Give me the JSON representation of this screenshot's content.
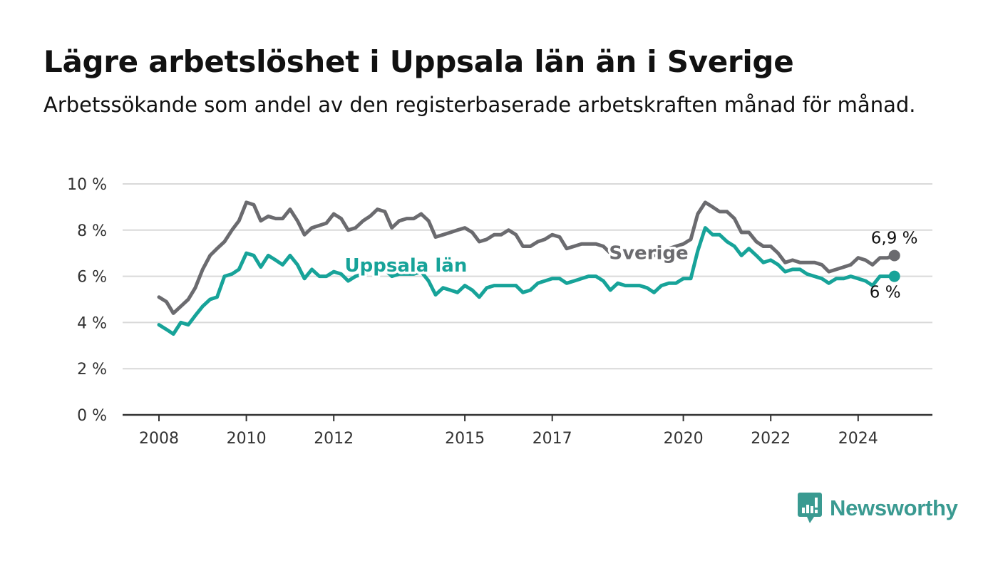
{
  "header": {
    "title": "Lägre arbetslöshet i Uppsala län än i Sverige",
    "subtitle": "Arbetssökande som andel av den registerbaserade arbetskraften månad för månad."
  },
  "brand": {
    "name": "Newsworthy",
    "color": "#3a9a91",
    "icon": "newsworthy-chart-bubble-icon"
  },
  "chart_data": {
    "type": "line",
    "title": "Lägre arbetslöshet i Uppsala län än i Sverige",
    "subtitle": "Arbetssökande som andel av den registerbaserade arbetskraften månad för månad.",
    "xlabel": "",
    "ylabel": "",
    "x_ticks": [
      "2008",
      "2010",
      "2012",
      "2015",
      "2017",
      "2020",
      "2022",
      "2024"
    ],
    "x_range": [
      2007.5,
      2026.0
    ],
    "y_ticks": [
      "0 %",
      "2 %",
      "4 %",
      "6 %",
      "8 %",
      "10 %"
    ],
    "ylim": [
      0,
      10
    ],
    "grid": true,
    "legend": "inline labels on lines",
    "series": [
      {
        "name": "Sverige",
        "color": "#6b6b6f",
        "end_label": "6,9 %",
        "points": [
          [
            2008.0,
            5.1
          ],
          [
            2008.17,
            4.9
          ],
          [
            2008.33,
            4.4
          ],
          [
            2008.5,
            4.7
          ],
          [
            2008.67,
            5.0
          ],
          [
            2008.83,
            5.5
          ],
          [
            2009.0,
            6.3
          ],
          [
            2009.17,
            6.9
          ],
          [
            2009.33,
            7.2
          ],
          [
            2009.5,
            7.5
          ],
          [
            2009.67,
            8.0
          ],
          [
            2009.83,
            8.4
          ],
          [
            2010.0,
            9.2
          ],
          [
            2010.17,
            9.1
          ],
          [
            2010.33,
            8.4
          ],
          [
            2010.5,
            8.6
          ],
          [
            2010.67,
            8.5
          ],
          [
            2010.83,
            8.5
          ],
          [
            2011.0,
            8.9
          ],
          [
            2011.17,
            8.4
          ],
          [
            2011.33,
            7.8
          ],
          [
            2011.5,
            8.1
          ],
          [
            2011.67,
            8.2
          ],
          [
            2011.83,
            8.3
          ],
          [
            2012.0,
            8.7
          ],
          [
            2012.17,
            8.5
          ],
          [
            2012.33,
            8.0
          ],
          [
            2012.5,
            8.1
          ],
          [
            2012.67,
            8.4
          ],
          [
            2012.83,
            8.6
          ],
          [
            2013.0,
            8.9
          ],
          [
            2013.17,
            8.8
          ],
          [
            2013.33,
            8.1
          ],
          [
            2013.5,
            8.4
          ],
          [
            2013.67,
            8.5
          ],
          [
            2013.83,
            8.5
          ],
          [
            2014.0,
            8.7
          ],
          [
            2014.17,
            8.4
          ],
          [
            2014.33,
            7.7
          ],
          [
            2014.5,
            7.8
          ],
          [
            2014.67,
            7.9
          ],
          [
            2014.83,
            8.0
          ],
          [
            2015.0,
            8.1
          ],
          [
            2015.17,
            7.9
          ],
          [
            2015.33,
            7.5
          ],
          [
            2015.5,
            7.6
          ],
          [
            2015.67,
            7.8
          ],
          [
            2015.83,
            7.8
          ],
          [
            2016.0,
            8.0
          ],
          [
            2016.17,
            7.8
          ],
          [
            2016.33,
            7.3
          ],
          [
            2016.5,
            7.3
          ],
          [
            2016.67,
            7.5
          ],
          [
            2016.83,
            7.6
          ],
          [
            2017.0,
            7.8
          ],
          [
            2017.17,
            7.7
          ],
          [
            2017.33,
            7.2
          ],
          [
            2017.5,
            7.3
          ],
          [
            2017.67,
            7.4
          ],
          [
            2017.83,
            7.4
          ],
          [
            2018.0,
            7.4
          ],
          [
            2018.17,
            7.3
          ],
          [
            2018.33,
            7.0
          ],
          [
            2018.5,
            7.0
          ],
          [
            2018.67,
            7.1
          ],
          [
            2018.83,
            7.1
          ],
          [
            2019.0,
            7.2
          ],
          [
            2019.17,
            7.1
          ],
          [
            2019.33,
            6.9
          ],
          [
            2019.5,
            7.0
          ],
          [
            2019.67,
            7.2
          ],
          [
            2019.83,
            7.3
          ],
          [
            2020.0,
            7.4
          ],
          [
            2020.17,
            7.6
          ],
          [
            2020.33,
            8.7
          ],
          [
            2020.5,
            9.2
          ],
          [
            2020.67,
            9.0
          ],
          [
            2020.83,
            8.8
          ],
          [
            2021.0,
            8.8
          ],
          [
            2021.17,
            8.5
          ],
          [
            2021.33,
            7.9
          ],
          [
            2021.5,
            7.9
          ],
          [
            2021.67,
            7.5
          ],
          [
            2021.83,
            7.3
          ],
          [
            2022.0,
            7.3
          ],
          [
            2022.17,
            7.0
          ],
          [
            2022.33,
            6.6
          ],
          [
            2022.5,
            6.7
          ],
          [
            2022.67,
            6.6
          ],
          [
            2022.83,
            6.6
          ],
          [
            2023.0,
            6.6
          ],
          [
            2023.17,
            6.5
          ],
          [
            2023.33,
            6.2
          ],
          [
            2023.5,
            6.3
          ],
          [
            2023.67,
            6.4
          ],
          [
            2023.83,
            6.5
          ],
          [
            2024.0,
            6.8
          ],
          [
            2024.17,
            6.7
          ],
          [
            2024.33,
            6.5
          ],
          [
            2024.5,
            6.8
          ],
          [
            2024.67,
            6.8
          ],
          [
            2024.83,
            6.9
          ]
        ]
      },
      {
        "name": "Uppsala län",
        "color": "#17a399",
        "end_label": "6 %",
        "points": [
          [
            2008.0,
            3.9
          ],
          [
            2008.17,
            3.7
          ],
          [
            2008.33,
            3.5
          ],
          [
            2008.5,
            4.0
          ],
          [
            2008.67,
            3.9
          ],
          [
            2008.83,
            4.3
          ],
          [
            2009.0,
            4.7
          ],
          [
            2009.17,
            5.0
          ],
          [
            2009.33,
            5.1
          ],
          [
            2009.5,
            6.0
          ],
          [
            2009.67,
            6.1
          ],
          [
            2009.83,
            6.3
          ],
          [
            2010.0,
            7.0
          ],
          [
            2010.17,
            6.9
          ],
          [
            2010.33,
            6.4
          ],
          [
            2010.5,
            6.9
          ],
          [
            2010.67,
            6.7
          ],
          [
            2010.83,
            6.5
          ],
          [
            2011.0,
            6.9
          ],
          [
            2011.17,
            6.5
          ],
          [
            2011.33,
            5.9
          ],
          [
            2011.5,
            6.3
          ],
          [
            2011.67,
            6.0
          ],
          [
            2011.83,
            6.0
          ],
          [
            2012.0,
            6.2
          ],
          [
            2012.17,
            6.1
          ],
          [
            2012.33,
            5.8
          ],
          [
            2012.5,
            6.0
          ],
          [
            2012.67,
            6.1
          ],
          [
            2012.83,
            6.2
          ],
          [
            2013.0,
            6.3
          ],
          [
            2013.17,
            6.3
          ],
          [
            2013.33,
            6.0
          ],
          [
            2013.5,
            6.1
          ],
          [
            2013.67,
            6.1
          ],
          [
            2013.83,
            6.1
          ],
          [
            2014.0,
            6.2
          ],
          [
            2014.17,
            5.8
          ],
          [
            2014.33,
            5.2
          ],
          [
            2014.5,
            5.5
          ],
          [
            2014.67,
            5.4
          ],
          [
            2014.83,
            5.3
          ],
          [
            2015.0,
            5.6
          ],
          [
            2015.17,
            5.4
          ],
          [
            2015.33,
            5.1
          ],
          [
            2015.5,
            5.5
          ],
          [
            2015.67,
            5.6
          ],
          [
            2015.83,
            5.6
          ],
          [
            2016.0,
            5.6
          ],
          [
            2016.17,
            5.6
          ],
          [
            2016.33,
            5.3
          ],
          [
            2016.5,
            5.4
          ],
          [
            2016.67,
            5.7
          ],
          [
            2016.83,
            5.8
          ],
          [
            2017.0,
            5.9
          ],
          [
            2017.17,
            5.9
          ],
          [
            2017.33,
            5.7
          ],
          [
            2017.5,
            5.8
          ],
          [
            2017.67,
            5.9
          ],
          [
            2017.83,
            6.0
          ],
          [
            2018.0,
            6.0
          ],
          [
            2018.17,
            5.8
          ],
          [
            2018.33,
            5.4
          ],
          [
            2018.5,
            5.7
          ],
          [
            2018.67,
            5.6
          ],
          [
            2018.83,
            5.6
          ],
          [
            2019.0,
            5.6
          ],
          [
            2019.17,
            5.5
          ],
          [
            2019.33,
            5.3
          ],
          [
            2019.5,
            5.6
          ],
          [
            2019.67,
            5.7
          ],
          [
            2019.83,
            5.7
          ],
          [
            2020.0,
            5.9
          ],
          [
            2020.17,
            5.9
          ],
          [
            2020.33,
            7.1
          ],
          [
            2020.5,
            8.1
          ],
          [
            2020.67,
            7.8
          ],
          [
            2020.83,
            7.8
          ],
          [
            2021.0,
            7.5
          ],
          [
            2021.17,
            7.3
          ],
          [
            2021.33,
            6.9
          ],
          [
            2021.5,
            7.2
          ],
          [
            2021.67,
            6.9
          ],
          [
            2021.83,
            6.6
          ],
          [
            2022.0,
            6.7
          ],
          [
            2022.17,
            6.5
          ],
          [
            2022.33,
            6.2
          ],
          [
            2022.5,
            6.3
          ],
          [
            2022.67,
            6.3
          ],
          [
            2022.83,
            6.1
          ],
          [
            2023.0,
            6.0
          ],
          [
            2023.17,
            5.9
          ],
          [
            2023.33,
            5.7
          ],
          [
            2023.5,
            5.9
          ],
          [
            2023.67,
            5.9
          ],
          [
            2023.83,
            6.0
          ],
          [
            2024.0,
            5.9
          ],
          [
            2024.17,
            5.8
          ],
          [
            2024.33,
            5.6
          ],
          [
            2024.5,
            6.0
          ],
          [
            2024.67,
            6.0
          ],
          [
            2024.83,
            6.0
          ]
        ]
      }
    ]
  }
}
